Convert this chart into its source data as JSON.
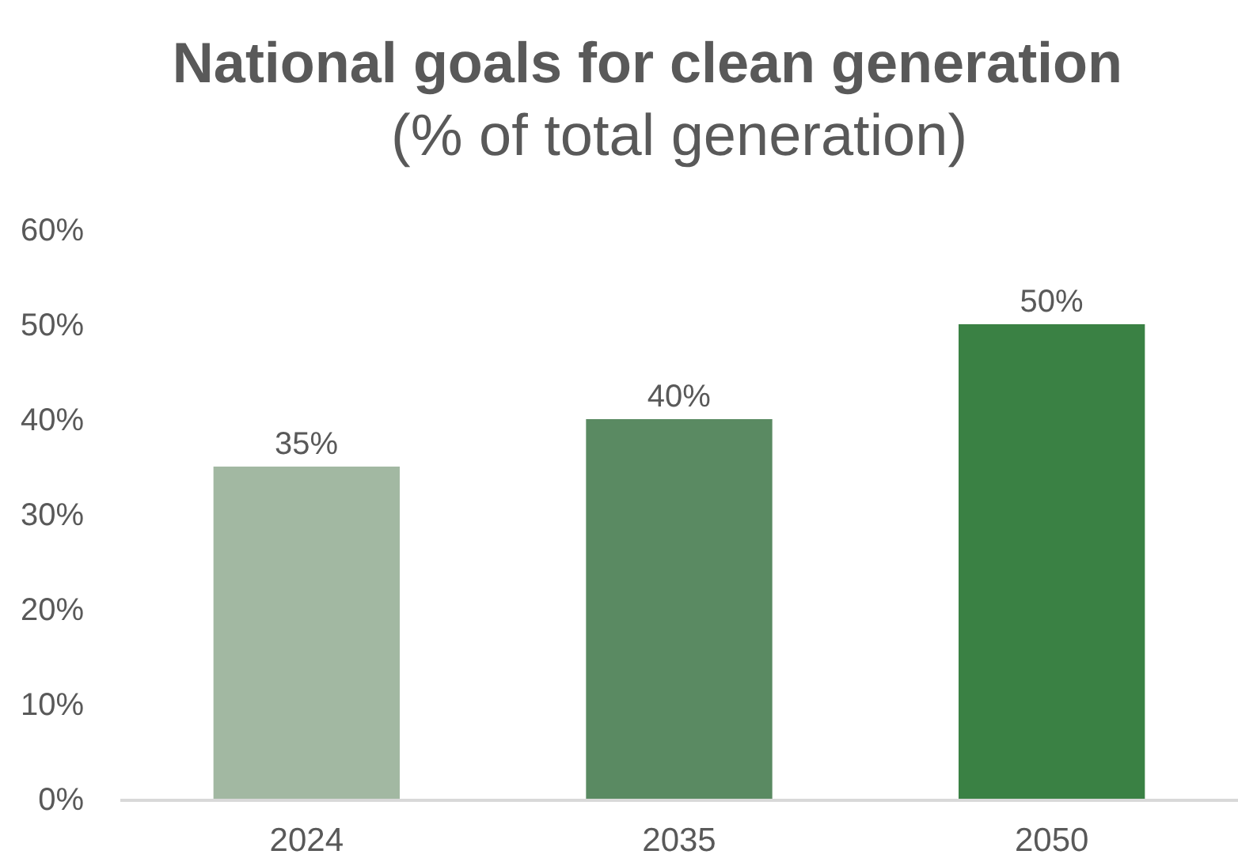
{
  "chart_data": {
    "type": "bar",
    "title": "National goals for clean generation",
    "subtitle": "(% of total generation)",
    "categories": [
      "2024",
      "2035",
      "2050"
    ],
    "values": [
      35,
      40,
      50
    ],
    "colors": [
      "#a2b8a2",
      "#5a8a62",
      "#3a8144"
    ],
    "value_labels": [
      "35%",
      "40%",
      "50%"
    ],
    "ylim": [
      0,
      60
    ],
    "yticks": [
      {
        "value": 0,
        "label": "0%"
      },
      {
        "value": 10,
        "label": "10%"
      },
      {
        "value": 20,
        "label": "20%"
      },
      {
        "value": 30,
        "label": "30%"
      },
      {
        "value": 40,
        "label": "40%"
      },
      {
        "value": 50,
        "label": "50%"
      },
      {
        "value": 60,
        "label": "60%"
      }
    ],
    "grid": false
  }
}
